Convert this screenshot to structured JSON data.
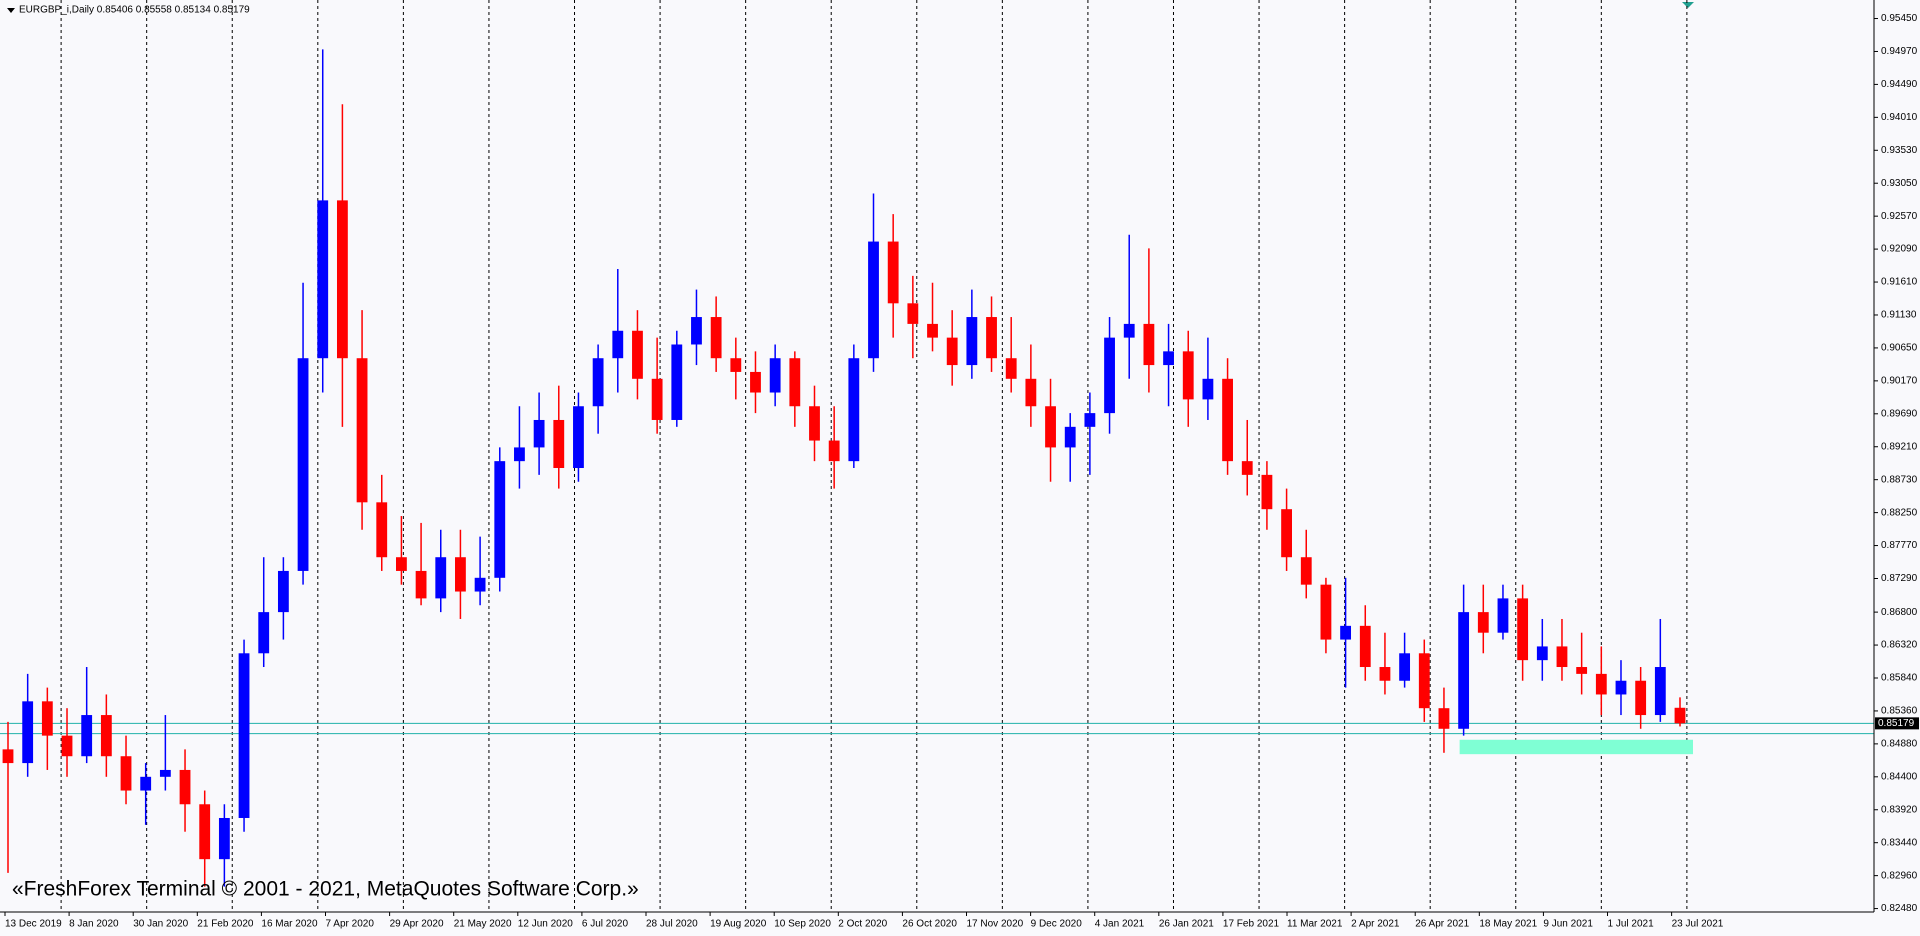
{
  "chart_data": {
    "type": "candlestick",
    "title": "EURGBP_i,Daily  0.85406 0.85558 0.85134 0.85179",
    "annotation": "«FreshForex Terminal © 2001 - 2021, MetaQuotes Software Corp.»",
    "categories": [
      "13 Dec 2019",
      "8 Jan 2020",
      "30 Jan 2020",
      "21 Feb 2020",
      "16 Mar 2020",
      "7 Apr 2020",
      "29 Apr 2020",
      "21 May 2020",
      "12 Jun 2020",
      "6 Jul 2020",
      "28 Jul 2020",
      "19 Aug 2020",
      "10 Sep 2020",
      "2 Oct 2020",
      "26 Oct 2020",
      "17 Nov 2020",
      "9 Dec 2020",
      "4 Jan 2021",
      "26 Jan 2021",
      "17 Feb 2021",
      "11 Mar 2021",
      "2 Apr 2021",
      "26 Apr 2021",
      "18 May 2021",
      "9 Jun 2021",
      "1 Jul 2021",
      "23 Jul 2021"
    ],
    "open": [
      0.848,
      0.846,
      0.855,
      0.85,
      0.847,
      0.853,
      0.847,
      0.842,
      0.844,
      0.845,
      0.84,
      0.832,
      0.838,
      0.862,
      0.868,
      0.874,
      0.905,
      0.928,
      0.905,
      0.884,
      0.876,
      0.874,
      0.87,
      0.876,
      0.871,
      0.873,
      0.89,
      0.892,
      0.896,
      0.889,
      0.898,
      0.905,
      0.909,
      0.902,
      0.896,
      0.907,
      0.911,
      0.905,
      0.903,
      0.9,
      0.905,
      0.898,
      0.893,
      0.89,
      0.905,
      0.922,
      0.913,
      0.91,
      0.908,
      0.904,
      0.911,
      0.905,
      0.902,
      0.898,
      0.892,
      0.895,
      0.897,
      0.908,
      0.91,
      0.904,
      0.906,
      0.899,
      0.902,
      0.89,
      0.888,
      0.883,
      0.876,
      0.872,
      0.864,
      0.866,
      0.86,
      0.858,
      0.862,
      0.854,
      0.851,
      0.868,
      0.865,
      0.87,
      0.861,
      0.863,
      0.86,
      0.859,
      0.856,
      0.858,
      0.853,
      0.85406
    ],
    "high": [
      0.852,
      0.859,
      0.857,
      0.854,
      0.86,
      0.856,
      0.85,
      0.846,
      0.853,
      0.848,
      0.842,
      0.84,
      0.864,
      0.876,
      0.876,
      0.916,
      0.95,
      0.942,
      0.912,
      0.888,
      0.882,
      0.881,
      0.88,
      0.88,
      0.879,
      0.892,
      0.898,
      0.9,
      0.901,
      0.9,
      0.907,
      0.918,
      0.912,
      0.908,
      0.909,
      0.915,
      0.914,
      0.908,
      0.906,
      0.907,
      0.906,
      0.901,
      0.898,
      0.907,
      0.929,
      0.926,
      0.917,
      0.916,
      0.912,
      0.915,
      0.914,
      0.911,
      0.907,
      0.902,
      0.897,
      0.9,
      0.911,
      0.923,
      0.921,
      0.91,
      0.909,
      0.908,
      0.905,
      0.896,
      0.89,
      0.886,
      0.88,
      0.873,
      0.873,
      0.869,
      0.865,
      0.865,
      0.864,
      0.857,
      0.872,
      0.872,
      0.872,
      0.872,
      0.867,
      0.867,
      0.865,
      0.863,
      0.861,
      0.86,
      0.867,
      0.85558
    ],
    "low": [
      0.83,
      0.844,
      0.845,
      0.844,
      0.846,
      0.844,
      0.84,
      0.837,
      0.842,
      0.836,
      0.828,
      0.828,
      0.836,
      0.86,
      0.864,
      0.872,
      0.9,
      0.895,
      0.88,
      0.874,
      0.872,
      0.869,
      0.868,
      0.867,
      0.869,
      0.871,
      0.886,
      0.888,
      0.886,
      0.887,
      0.894,
      0.9,
      0.899,
      0.894,
      0.895,
      0.904,
      0.903,
      0.899,
      0.897,
      0.898,
      0.895,
      0.89,
      0.886,
      0.889,
      0.903,
      0.908,
      0.905,
      0.906,
      0.901,
      0.902,
      0.903,
      0.9,
      0.895,
      0.887,
      0.887,
      0.888,
      0.894,
      0.902,
      0.9,
      0.898,
      0.895,
      0.896,
      0.888,
      0.885,
      0.88,
      0.874,
      0.87,
      0.862,
      0.857,
      0.858,
      0.856,
      0.857,
      0.852,
      0.8475,
      0.85,
      0.862,
      0.864,
      0.858,
      0.858,
      0.858,
      0.856,
      0.853,
      0.853,
      0.851,
      0.852,
      0.85134
    ],
    "close": [
      0.846,
      0.855,
      0.85,
      0.847,
      0.853,
      0.847,
      0.842,
      0.844,
      0.845,
      0.84,
      0.832,
      0.838,
      0.862,
      0.868,
      0.874,
      0.905,
      0.928,
      0.905,
      0.884,
      0.876,
      0.874,
      0.87,
      0.876,
      0.871,
      0.873,
      0.89,
      0.892,
      0.896,
      0.889,
      0.898,
      0.905,
      0.909,
      0.902,
      0.896,
      0.907,
      0.911,
      0.905,
      0.903,
      0.9,
      0.905,
      0.898,
      0.893,
      0.89,
      0.905,
      0.922,
      0.913,
      0.91,
      0.908,
      0.904,
      0.911,
      0.905,
      0.902,
      0.898,
      0.892,
      0.895,
      0.897,
      0.908,
      0.91,
      0.904,
      0.906,
      0.899,
      0.902,
      0.89,
      0.888,
      0.883,
      0.876,
      0.872,
      0.864,
      0.866,
      0.86,
      0.858,
      0.862,
      0.854,
      0.851,
      0.868,
      0.865,
      0.87,
      0.861,
      0.863,
      0.86,
      0.859,
      0.856,
      0.858,
      0.853,
      0.86,
      0.85179
    ],
    "up_color": "#0000ff",
    "down_color": "#ff0000",
    "ylim": [
      0.8243,
      0.9572
    ],
    "yticks": [
      {
        "value": 0.9545,
        "label": "0.95450"
      },
      {
        "value": 0.9497,
        "label": "0.94970"
      },
      {
        "value": 0.9449,
        "label": "0.94490"
      },
      {
        "value": 0.9401,
        "label": "0.94010"
      },
      {
        "value": 0.9353,
        "label": "0.93530"
      },
      {
        "value": 0.9305,
        "label": "0.93050"
      },
      {
        "value": 0.9257,
        "label": "0.92570"
      },
      {
        "value": 0.9209,
        "label": "0.92090"
      },
      {
        "value": 0.9161,
        "label": "0.91610"
      },
      {
        "value": 0.9113,
        "label": "0.91130"
      },
      {
        "value": 0.9065,
        "label": "0.90650"
      },
      {
        "value": 0.9017,
        "label": "0.90170"
      },
      {
        "value": 0.8969,
        "label": "0.89690"
      },
      {
        "value": 0.8921,
        "label": "0.89210"
      },
      {
        "value": 0.8873,
        "label": "0.88730"
      },
      {
        "value": 0.8825,
        "label": "0.88250"
      },
      {
        "value": 0.8777,
        "label": "0.87770"
      },
      {
        "value": 0.8729,
        "label": "0.87290"
      },
      {
        "value": 0.868,
        "label": "0.86800"
      },
      {
        "value": 0.8632,
        "label": "0.86320"
      },
      {
        "value": 0.8584,
        "label": "0.85840"
      },
      {
        "value": 0.8536,
        "label": "0.85360"
      },
      {
        "value": 0.8488,
        "label": "0.84880"
      },
      {
        "value": 0.844,
        "label": "0.84400"
      },
      {
        "value": 0.8392,
        "label": "0.83920"
      },
      {
        "value": 0.8344,
        "label": "0.83440"
      },
      {
        "value": 0.8296,
        "label": "0.82960"
      },
      {
        "value": 0.8248,
        "label": "0.82480"
      }
    ],
    "last_price": {
      "value": 0.85179,
      "label": "0.85179"
    },
    "levels": [
      0.8503
    ],
    "level_color": "#20b2aa",
    "zone": [
      0.8473,
      0.8494
    ],
    "zone_color": "#7fffd4"
  }
}
